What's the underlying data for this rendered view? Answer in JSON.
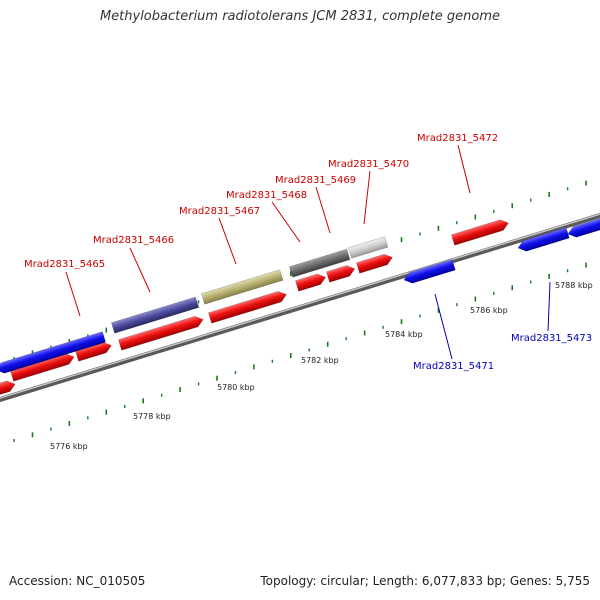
{
  "title": "Methylobacterium radiotolerans JCM 2831, complete genome",
  "footer": {
    "accession": "Accession: NC_010505",
    "stats": "Topology: circular; Length: 6,077,833 bp; Genes: 5,755"
  },
  "colors": {
    "forward_gene": "#ee1111",
    "reverse_gene": "#1111ee",
    "label_forward": "#cc0000",
    "label_reverse": "#0000bb",
    "backbone": "#888888",
    "tick": "#1a7a1a"
  },
  "scale": {
    "unit": "kbp",
    "labels": [
      "5776 kbp",
      "5778 kbp",
      "5780 kbp",
      "5782 kbp",
      "5784 kbp",
      "5786 kbp",
      "5788 kbp"
    ]
  },
  "gene_labels": [
    {
      "text": "Mrad2831_5465",
      "strand": "forward"
    },
    {
      "text": "Mrad2831_5466",
      "strand": "forward"
    },
    {
      "text": "Mrad2831_5467",
      "strand": "forward"
    },
    {
      "text": "Mrad2831_5468",
      "strand": "forward"
    },
    {
      "text": "Mrad2831_5469",
      "strand": "forward"
    },
    {
      "text": "Mrad2831_5470",
      "strand": "forward"
    },
    {
      "text": "Mrad2831_5472",
      "strand": "forward"
    },
    {
      "text": "Mrad2831_5471",
      "strand": "reverse"
    },
    {
      "text": "Mrad2831_5473",
      "strand": "reverse"
    }
  ],
  "highlight_colors": [
    "#4a4a9a",
    "#b8b070",
    "#6a6a6a",
    "#cfcfcf"
  ]
}
